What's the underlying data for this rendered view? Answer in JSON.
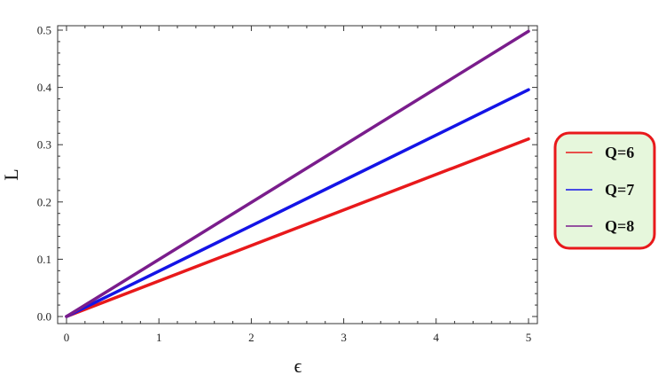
{
  "chart_data": {
    "type": "line",
    "xlabel": "ϵ",
    "ylabel": "L",
    "xlim": [
      0,
      5
    ],
    "ylim": [
      0,
      0.5
    ],
    "xticks": [
      "0",
      "1",
      "2",
      "3",
      "4",
      "5"
    ],
    "yticks": [
      "0.0",
      "0.1",
      "0.2",
      "0.3",
      "0.4",
      "0.5"
    ],
    "grid": false,
    "legend_position": "right",
    "series": [
      {
        "name": "Q=6",
        "color": "#e8191b",
        "x": [
          0,
          5
        ],
        "y": [
          0,
          0.31
        ]
      },
      {
        "name": "Q=7",
        "color": "#1414e6",
        "x": [
          0,
          5
        ],
        "y": [
          0,
          0.396
        ]
      },
      {
        "name": "Q=8",
        "color": "#7a1d8c",
        "x": [
          0,
          5
        ],
        "y": [
          0,
          0.498
        ]
      }
    ],
    "legend_box": {
      "border_color": "#e8191b",
      "fill_color": "#e6f7dc"
    }
  }
}
